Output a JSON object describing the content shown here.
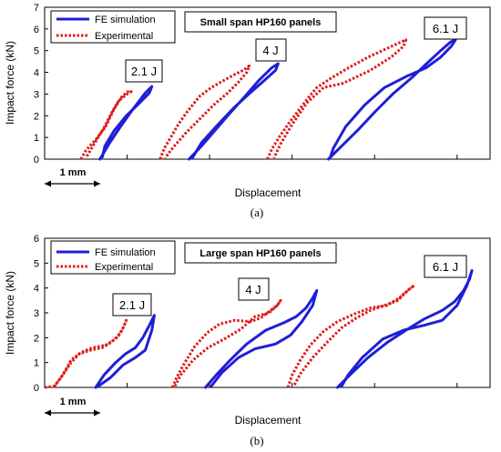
{
  "chart_data": [
    {
      "type": "line",
      "title": "Small span HP160 panels",
      "xlabel": "Displacement",
      "ylabel": "Impact force (kN)",
      "ylim": [
        0,
        7
      ],
      "yticks": [
        0,
        1,
        2,
        3,
        4,
        5,
        6,
        7
      ],
      "grid": false,
      "legend_position": "top-left",
      "scale_bar": "1 mm",
      "caption": "(a)",
      "series": [
        {
          "name": "FE simulation",
          "color": "#1f1fd6",
          "style": "solid"
        },
        {
          "name": "Experimental",
          "color": "#e01b1b",
          "style": "dotted"
        }
      ],
      "cases": [
        {
          "label": "2.1 J",
          "fe": [
            [
              0.67,
              0
            ],
            [
              0.78,
              0.7
            ],
            [
              0.92,
              1.5
            ],
            [
              1.07,
              2.3
            ],
            [
              1.22,
              3.05
            ],
            [
              1.3,
              3.35
            ],
            [
              1.27,
              3.05
            ],
            [
              1.14,
              2.55
            ],
            [
              0.99,
              2.0
            ],
            [
              0.84,
              1.3
            ],
            [
              0.73,
              0.6
            ],
            [
              0.7,
              0.1
            ]
          ],
          "exp": [
            [
              0.44,
              0
            ],
            [
              0.5,
              0.4
            ],
            [
              0.62,
              0.9
            ],
            [
              0.74,
              1.5
            ],
            [
              0.84,
              2.3
            ],
            [
              0.93,
              2.85
            ],
            [
              1.0,
              3.1
            ],
            [
              1.05,
              3.12
            ],
            [
              1.0,
              3.0
            ],
            [
              0.9,
              2.7
            ],
            [
              0.82,
              2.2
            ],
            [
              0.72,
              1.45
            ],
            [
              0.6,
              0.7
            ],
            [
              0.5,
              0.05
            ]
          ]
        },
        {
          "label": "4 J",
          "fe": [
            [
              1.75,
              0
            ],
            [
              1.9,
              0.6
            ],
            [
              2.06,
              1.3
            ],
            [
              2.23,
              2.05
            ],
            [
              2.42,
              2.85
            ],
            [
              2.59,
              3.6
            ],
            [
              2.75,
              4.2
            ],
            [
              2.83,
              4.4
            ],
            [
              2.8,
              4.1
            ],
            [
              2.67,
              3.65
            ],
            [
              2.49,
              3.05
            ],
            [
              2.29,
              2.35
            ],
            [
              2.09,
              1.55
            ],
            [
              1.9,
              0.75
            ],
            [
              1.79,
              0.05
            ]
          ],
          "exp": [
            [
              1.4,
              0
            ],
            [
              1.45,
              0.5
            ],
            [
              1.53,
              1.0
            ],
            [
              1.62,
              1.6
            ],
            [
              1.73,
              2.2
            ],
            [
              1.88,
              2.9
            ],
            [
              2.02,
              3.3
            ],
            [
              2.16,
              3.6
            ],
            [
              2.3,
              3.9
            ],
            [
              2.41,
              4.1
            ],
            [
              2.48,
              4.3
            ],
            [
              2.45,
              4.0
            ],
            [
              2.35,
              3.55
            ],
            [
              2.22,
              3.05
            ],
            [
              2.05,
              2.5
            ],
            [
              1.88,
              1.85
            ],
            [
              1.71,
              1.2
            ],
            [
              1.56,
              0.55
            ],
            [
              1.46,
              0.05
            ]
          ]
        },
        {
          "label": "6.1 J",
          "fe": [
            [
              3.44,
              0
            ],
            [
              3.6,
              0.6
            ],
            [
              3.8,
              1.35
            ],
            [
              4.01,
              2.2
            ],
            [
              4.22,
              3.0
            ],
            [
              4.45,
              3.75
            ],
            [
              4.63,
              4.4
            ],
            [
              4.8,
              5.0
            ],
            [
              4.92,
              5.4
            ],
            [
              4.98,
              5.5
            ],
            [
              4.93,
              5.2
            ],
            [
              4.8,
              4.7
            ],
            [
              4.62,
              4.2
            ],
            [
              4.38,
              3.8
            ],
            [
              4.12,
              3.3
            ],
            [
              3.88,
              2.5
            ],
            [
              3.65,
              1.5
            ],
            [
              3.5,
              0.5
            ],
            [
              3.46,
              0.05
            ]
          ],
          "exp": [
            [
              2.7,
              0
            ],
            [
              2.76,
              0.5
            ],
            [
              2.85,
              1.05
            ],
            [
              2.96,
              1.65
            ],
            [
              3.08,
              2.25
            ],
            [
              3.2,
              2.85
            ],
            [
              3.3,
              3.3
            ],
            [
              3.48,
              3.75
            ],
            [
              3.68,
              4.2
            ],
            [
              3.92,
              4.7
            ],
            [
              4.15,
              5.1
            ],
            [
              4.29,
              5.35
            ],
            [
              4.38,
              5.5
            ],
            [
              4.35,
              5.2
            ],
            [
              4.2,
              4.7
            ],
            [
              3.95,
              4.1
            ],
            [
              3.62,
              3.5
            ],
            [
              3.38,
              3.3
            ],
            [
              3.18,
              2.6
            ],
            [
              3.0,
              1.6
            ],
            [
              2.86,
              0.7
            ],
            [
              2.78,
              0.05
            ]
          ]
        }
      ]
    },
    {
      "type": "line",
      "title": "Large span HP160 panels",
      "xlabel": "Displacement",
      "ylabel": "Impact force (kN)",
      "ylim": [
        0,
        6
      ],
      "yticks": [
        0,
        1,
        2,
        3,
        4,
        5,
        6
      ],
      "grid": false,
      "legend_position": "top-left",
      "scale_bar": "1 mm",
      "caption": "(b)",
      "series": [
        {
          "name": "FE simulation",
          "color": "#1f1fd6",
          "style": "solid"
        },
        {
          "name": "Experimental",
          "color": "#e01b1b",
          "style": "dotted"
        }
      ],
      "cases": [
        {
          "label": "2.1 J",
          "fe": [
            [
              0.62,
              0
            ],
            [
              0.72,
              0.5
            ],
            [
              0.86,
              1.0
            ],
            [
              0.98,
              1.35
            ],
            [
              1.1,
              1.6
            ],
            [
              1.19,
              2.0
            ],
            [
              1.27,
              2.5
            ],
            [
              1.33,
              2.9
            ],
            [
              1.3,
              2.3
            ],
            [
              1.22,
              1.5
            ],
            [
              1.1,
              1.2
            ],
            [
              0.95,
              0.9
            ],
            [
              0.8,
              0.4
            ],
            [
              0.65,
              0.05
            ]
          ],
          "exp": [
            [
              0.0,
              0
            ],
            [
              0.12,
              0.05
            ],
            [
              0.22,
              0.5
            ],
            [
              0.32,
              1.0
            ],
            [
              0.42,
              1.35
            ],
            [
              0.56,
              1.5
            ],
            [
              0.7,
              1.6
            ],
            [
              0.8,
              1.8
            ],
            [
              0.9,
              2.1
            ],
            [
              0.96,
              2.45
            ],
            [
              0.99,
              2.7
            ],
            [
              0.94,
              2.3
            ],
            [
              0.86,
              1.95
            ],
            [
              0.74,
              1.7
            ],
            [
              0.58,
              1.6
            ],
            [
              0.44,
              1.4
            ],
            [
              0.32,
              1.1
            ],
            [
              0.22,
              0.5
            ],
            [
              0.12,
              0.05
            ]
          ]
        },
        {
          "label": "4 J",
          "fe": [
            [
              1.95,
              0
            ],
            [
              2.08,
              0.5
            ],
            [
              2.25,
              1.1
            ],
            [
              2.45,
              1.75
            ],
            [
              2.68,
              2.3
            ],
            [
              2.9,
              2.6
            ],
            [
              3.05,
              2.85
            ],
            [
              3.17,
              3.2
            ],
            [
              3.25,
              3.6
            ],
            [
              3.3,
              3.9
            ],
            [
              3.25,
              3.3
            ],
            [
              3.12,
              2.65
            ],
            [
              2.98,
              2.1
            ],
            [
              2.8,
              1.75
            ],
            [
              2.55,
              1.55
            ],
            [
              2.35,
              1.2
            ],
            [
              2.15,
              0.6
            ],
            [
              2.02,
              0.05
            ]
          ],
          "exp": [
            [
              1.55,
              0
            ],
            [
              1.6,
              0.4
            ],
            [
              1.7,
              1.0
            ],
            [
              1.82,
              1.65
            ],
            [
              1.97,
              2.2
            ],
            [
              2.12,
              2.55
            ],
            [
              2.3,
              2.7
            ],
            [
              2.5,
              2.65
            ],
            [
              2.62,
              2.8
            ],
            [
              2.74,
              3.1
            ],
            [
              2.82,
              3.3
            ],
            [
              2.86,
              3.5
            ],
            [
              2.82,
              3.3
            ],
            [
              2.72,
              3.0
            ],
            [
              2.55,
              2.85
            ],
            [
              2.38,
              2.35
            ],
            [
              2.18,
              1.95
            ],
            [
              1.98,
              1.6
            ],
            [
              1.8,
              1.1
            ],
            [
              1.65,
              0.5
            ],
            [
              1.58,
              0.05
            ]
          ]
        },
        {
          "label": "6.1 J",
          "fe": [
            [
              3.55,
              0
            ],
            [
              3.7,
              0.5
            ],
            [
              3.92,
              1.2
            ],
            [
              4.15,
              1.8
            ],
            [
              4.38,
              2.3
            ],
            [
              4.6,
              2.75
            ],
            [
              4.82,
              3.1
            ],
            [
              4.97,
              3.45
            ],
            [
              5.08,
              3.9
            ],
            [
              5.15,
              4.35
            ],
            [
              5.18,
              4.7
            ],
            [
              5.12,
              4.1
            ],
            [
              5.0,
              3.3
            ],
            [
              4.82,
              2.7
            ],
            [
              4.6,
              2.5
            ],
            [
              4.35,
              2.3
            ],
            [
              4.1,
              1.95
            ],
            [
              3.85,
              1.2
            ],
            [
              3.68,
              0.5
            ],
            [
              3.6,
              0.05
            ]
          ],
          "exp": [
            [
              2.95,
              0
            ],
            [
              3.0,
              0.5
            ],
            [
              3.1,
              1.1
            ],
            [
              3.22,
              1.7
            ],
            [
              3.38,
              2.25
            ],
            [
              3.55,
              2.65
            ],
            [
              3.75,
              2.95
            ],
            [
              3.95,
              3.2
            ],
            [
              4.15,
              3.3
            ],
            [
              4.3,
              3.6
            ],
            [
              4.42,
              3.95
            ],
            [
              4.48,
              4.1
            ],
            [
              4.4,
              3.9
            ],
            [
              4.28,
              3.5
            ],
            [
              4.12,
              3.3
            ],
            [
              3.95,
              3.1
            ],
            [
              3.78,
              2.8
            ],
            [
              3.6,
              2.4
            ],
            [
              3.42,
              1.8
            ],
            [
              3.25,
              1.2
            ],
            [
              3.1,
              0.55
            ],
            [
              3.02,
              0.05
            ]
          ]
        }
      ]
    }
  ]
}
